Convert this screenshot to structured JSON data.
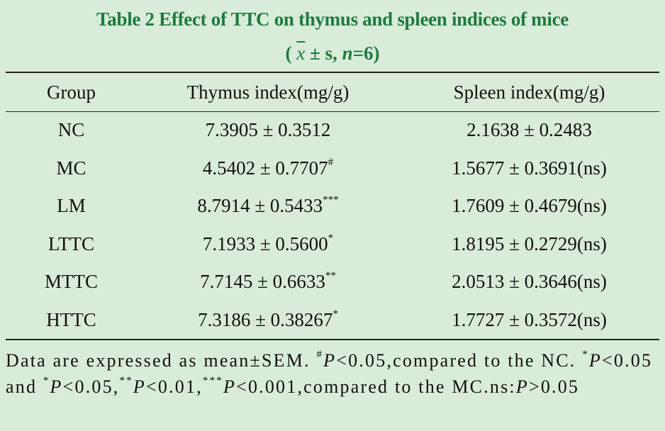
{
  "title": "Table 2  Effect of TTC on thymus and spleen indices of mice",
  "subtitle": {
    "open": "( ",
    "xbar": "x",
    "middle": " ± s, ",
    "nvar": "n",
    "close": "=6)"
  },
  "headers": [
    "Group",
    "Thymus index(mg/g)",
    "Spleen index(mg/g)"
  ],
  "rows": [
    {
      "group": "NC",
      "thymus": "7.3905 ± 0.3512",
      "thymus_mark": "",
      "spleen": "2.1638 ± 0.2483"
    },
    {
      "group": "MC",
      "thymus": "4.5402 ± 0.7707",
      "thymus_mark": "#",
      "spleen": "1.5677 ± 0.3691(ns)"
    },
    {
      "group": "LM",
      "thymus": "8.7914 ± 0.5433",
      "thymus_mark": "***",
      "spleen": "1.7609 ± 0.4679(ns)"
    },
    {
      "group": "LTTC",
      "thymus": "7.1933 ± 0.5600",
      "thymus_mark": "*",
      "spleen": "1.8195 ± 0.2729(ns)"
    },
    {
      "group": "MTTC",
      "thymus": "7.7145 ± 0.6633",
      "thymus_mark": "**",
      "spleen": "2.0513 ± 0.3646(ns)"
    },
    {
      "group": "HTTC",
      "thymus": "7.3186 ± 0.38267",
      "thymus_mark": "*",
      "spleen": "1.7727 ± 0.3572(ns)"
    }
  ],
  "footnote": {
    "t1": "Data are expressed as mean±SEM. ",
    "m1": "#",
    "p1": "P",
    "t2": "<0.05,compared to the NC. ",
    "m2": "*",
    "p2": "P",
    "t3": "<0.05 and ",
    "m3": "*",
    "p3": "P",
    "t4": "<0.05,",
    "m4": "**",
    "p4": "P",
    "t5": "<0.01,",
    "m5": "***",
    "p5": "P",
    "t6": "<0.001,compared to the MC.ns:",
    "p6": "P",
    "t7": ">0.05"
  },
  "colors": {
    "title": "#1f7a3f",
    "background": "#d9ecd9"
  }
}
